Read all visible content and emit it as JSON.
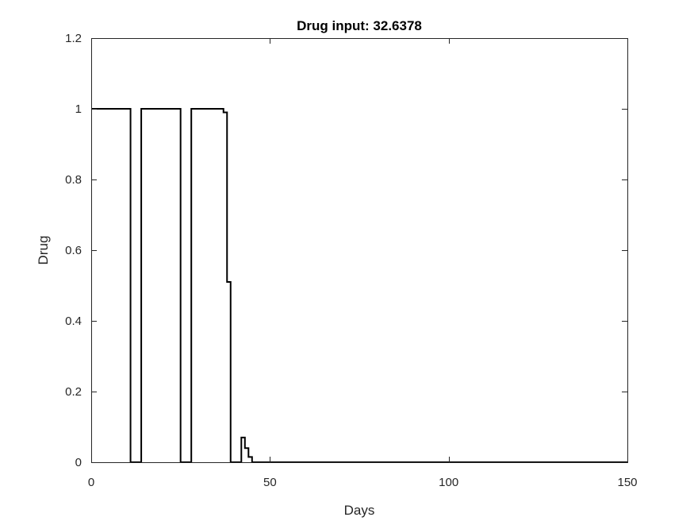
{
  "chart_data": {
    "type": "line",
    "title": "Drug input: 32.6378",
    "xlabel": "Days",
    "ylabel": "Drug",
    "xlim": [
      0,
      150
    ],
    "ylim": [
      0,
      1.2
    ],
    "x_ticks": [
      0,
      50,
      100,
      150
    ],
    "y_ticks": [
      0,
      0.2,
      0.4,
      0.6,
      0.8,
      1,
      1.2
    ],
    "x_tick_labels": [
      "0",
      "50",
      "100",
      "150"
    ],
    "y_tick_labels": [
      "0",
      "0.2",
      "0.4",
      "0.6",
      "0.8",
      "1",
      "1.2"
    ],
    "grid": false,
    "box": true,
    "series": [
      {
        "style": "stairs",
        "color": "#000000",
        "x": [
          0,
          11,
          14,
          25,
          28,
          37,
          38,
          39,
          42,
          43,
          44,
          45,
          150
        ],
        "y": [
          1,
          0,
          1,
          0,
          1,
          0.99,
          0.51,
          0,
          0.07,
          0.04,
          0.015,
          0,
          0
        ]
      }
    ]
  }
}
